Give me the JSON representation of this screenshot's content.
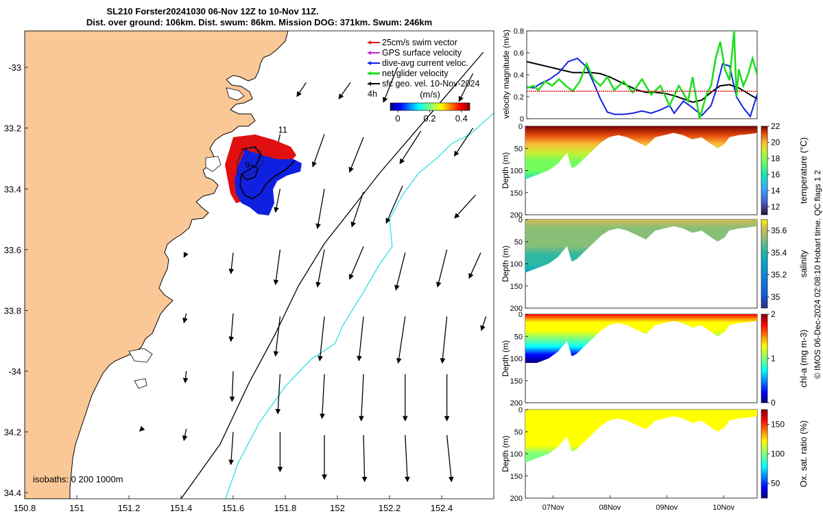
{
  "title_lines": [
    "SL210 Forster20241030 06-Nov 12Z to 10-Nov 11Z.",
    "Dist. over ground: 106km. Dist. swum: 86km. Mission DOG: 371km. Swum: 246km"
  ],
  "colors": {
    "land": "#f9c896",
    "swim": "#e01010",
    "gps": "#d020d0",
    "dive": "#1020e0",
    "net": "#20dd20",
    "sfc": "#000000",
    "isobath200": "#000000",
    "isobath1000": "#30dfe0"
  },
  "chart_data": [
    {
      "type": "map",
      "name": "glider-track-map",
      "xlim": [
        150.8,
        152.6
      ],
      "ylim": [
        -34.42,
        -32.88
      ],
      "x_ticks": [
        150.8,
        151,
        151.2,
        151.4,
        151.6,
        151.8,
        152,
        152.2,
        152.4
      ],
      "x_tick_labels": [
        "150.8",
        "151",
        "151.2",
        "151.4",
        "151.6",
        "151.8",
        "152",
        "152.2",
        "152.4"
      ],
      "y_ticks": [
        -33,
        -33.2,
        -33.4,
        -33.6,
        -33.8,
        -34,
        -34.2,
        -34.4
      ],
      "y_tick_labels": [
        "-33",
        "33.2",
        "33.4",
        "33.6",
        "33.8",
        "-34",
        "34.2",
        "34.4"
      ],
      "legend": {
        "items": [
          {
            "key": "swim",
            "label": "25cm/s swim vector"
          },
          {
            "key": "gps",
            "label": "GPS surface velocity"
          },
          {
            "key": "dive",
            "label": "dive-avg current veloc."
          },
          {
            "key": "net",
            "label": "net glider velocity"
          },
          {
            "key": "sfc",
            "label": "sfc geo. vel. 10-Nov-2024"
          }
        ],
        "interval_label": "4h",
        "colorbar_title": "(m/s)",
        "colorbar_ticks": [
          "0",
          "0.2",
          "0.4"
        ],
        "colorbar_range": [
          0,
          0.5
        ]
      },
      "track_labels": [
        {
          "text": "11",
          "lon": 151.79,
          "lat": -33.215
        },
        {
          "text": "9",
          "lon": 151.655,
          "lat": -33.33
        }
      ],
      "isobaths_label": "isobaths: 0   200  1000m",
      "isobath_200": [
        [
          151.4,
          -34.42
        ],
        [
          151.55,
          -34.24
        ],
        [
          151.66,
          -34.04
        ],
        [
          151.76,
          -33.88
        ],
        [
          151.85,
          -33.72
        ],
        [
          151.95,
          -33.58
        ],
        [
          152.06,
          -33.46
        ],
        [
          152.16,
          -33.35
        ],
        [
          152.27,
          -33.24
        ],
        [
          152.4,
          -33.11
        ],
        [
          152.56,
          -32.95
        ]
      ],
      "isobath_1000": [
        [
          151.57,
          -34.42
        ],
        [
          151.62,
          -34.3
        ],
        [
          151.7,
          -34.17
        ],
        [
          151.8,
          -34.05
        ],
        [
          151.9,
          -33.96
        ],
        [
          151.99,
          -33.91
        ],
        [
          152.02,
          -33.85
        ],
        [
          152.1,
          -33.74
        ],
        [
          152.16,
          -33.65
        ],
        [
          152.21,
          -33.59
        ],
        [
          152.2,
          -33.5
        ],
        [
          152.25,
          -33.42
        ],
        [
          152.31,
          -33.35
        ],
        [
          152.38,
          -33.3
        ],
        [
          152.44,
          -33.25
        ],
        [
          152.51,
          -33.22
        ],
        [
          152.6,
          -33.15
        ]
      ],
      "sfc_vectors": [
        {
          "lon": 152.23,
          "lat": -33.0,
          "u": -0.12,
          "v": -0.3
        },
        {
          "lon": 151.88,
          "lat": -33.05,
          "u": -0.08,
          "v": -0.12
        },
        {
          "lon": 152.05,
          "lat": -33.05,
          "u": -0.1,
          "v": -0.14
        },
        {
          "lon": 152.52,
          "lat": -33.02,
          "u": -0.12,
          "v": -0.24
        },
        {
          "lon": 151.78,
          "lat": -33.22,
          "u": -0.06,
          "v": -0.28
        },
        {
          "lon": 151.95,
          "lat": -33.22,
          "u": -0.1,
          "v": -0.28
        },
        {
          "lon": 152.1,
          "lat": -33.23,
          "u": -0.12,
          "v": -0.3
        },
        {
          "lon": 152.32,
          "lat": -33.21,
          "u": -0.18,
          "v": -0.28
        },
        {
          "lon": 152.52,
          "lat": -33.2,
          "u": -0.16,
          "v": -0.24
        },
        {
          "lon": 151.78,
          "lat": -33.4,
          "u": -0.04,
          "v": -0.2
        },
        {
          "lon": 151.95,
          "lat": -33.4,
          "u": -0.06,
          "v": -0.34
        },
        {
          "lon": 152.1,
          "lat": -33.41,
          "u": -0.1,
          "v": -0.3
        },
        {
          "lon": 152.25,
          "lat": -33.39,
          "u": -0.14,
          "v": -0.32
        },
        {
          "lon": 152.53,
          "lat": -33.42,
          "u": -0.18,
          "v": -0.2
        },
        {
          "lon": 151.42,
          "lat": -33.61,
          "u": -0.02,
          "v": -0.04
        },
        {
          "lon": 151.6,
          "lat": -33.61,
          "u": -0.02,
          "v": -0.18
        },
        {
          "lon": 151.78,
          "lat": -33.6,
          "u": -0.04,
          "v": -0.3
        },
        {
          "lon": 151.95,
          "lat": -33.6,
          "u": -0.06,
          "v": -0.32
        },
        {
          "lon": 152.1,
          "lat": -33.59,
          "u": -0.12,
          "v": -0.28
        },
        {
          "lon": 152.26,
          "lat": -33.61,
          "u": -0.08,
          "v": -0.32
        },
        {
          "lon": 152.42,
          "lat": -33.6,
          "u": -0.08,
          "v": -0.32
        },
        {
          "lon": 152.55,
          "lat": -33.61,
          "u": -0.1,
          "v": -0.22
        },
        {
          "lon": 151.42,
          "lat": -33.81,
          "u": -0.02,
          "v": -0.08
        },
        {
          "lon": 151.6,
          "lat": -33.81,
          "u": -0.02,
          "v": -0.24
        },
        {
          "lon": 151.78,
          "lat": -33.82,
          "u": -0.04,
          "v": -0.34
        },
        {
          "lon": 151.95,
          "lat": -33.82,
          "u": -0.04,
          "v": -0.38
        },
        {
          "lon": 152.1,
          "lat": -33.82,
          "u": -0.04,
          "v": -0.38
        },
        {
          "lon": 152.26,
          "lat": -33.82,
          "u": -0.06,
          "v": -0.4
        },
        {
          "lon": 152.42,
          "lat": -33.82,
          "u": -0.04,
          "v": -0.4
        },
        {
          "lon": 152.57,
          "lat": -33.82,
          "u": -0.04,
          "v": -0.12
        },
        {
          "lon": 151.42,
          "lat": -34.0,
          "u": -0.01,
          "v": -0.1
        },
        {
          "lon": 151.6,
          "lat": -34.0,
          "u": -0.01,
          "v": -0.26
        },
        {
          "lon": 151.78,
          "lat": -34.01,
          "u": -0.02,
          "v": -0.34
        },
        {
          "lon": 151.95,
          "lat": -34.01,
          "u": -0.02,
          "v": -0.38
        },
        {
          "lon": 152.1,
          "lat": -34.01,
          "u": -0.02,
          "v": -0.4
        },
        {
          "lon": 152.26,
          "lat": -34.01,
          "u": 0.0,
          "v": -0.4
        },
        {
          "lon": 152.42,
          "lat": -34.01,
          "u": 0.0,
          "v": -0.4
        },
        {
          "lon": 151.25,
          "lat": -34.19,
          "u": -0.02,
          "v": -0.02
        },
        {
          "lon": 151.42,
          "lat": -34.19,
          "u": -0.02,
          "v": -0.1
        },
        {
          "lon": 151.6,
          "lat": -34.2,
          "u": -0.02,
          "v": -0.28
        },
        {
          "lon": 151.78,
          "lat": -34.2,
          "u": 0.0,
          "v": -0.34
        },
        {
          "lon": 151.95,
          "lat": -34.21,
          "u": 0.0,
          "v": -0.38
        },
        {
          "lon": 152.1,
          "lat": -34.21,
          "u": 0.01,
          "v": -0.4
        },
        {
          "lon": 152.26,
          "lat": -34.21,
          "u": 0.02,
          "v": -0.4
        },
        {
          "lon": 152.42,
          "lat": -34.21,
          "u": 0.04,
          "v": -0.4
        }
      ]
    },
    {
      "type": "line",
      "name": "velocity-magnitude-chart",
      "ylabel": "velocity magnitude (m/s)",
      "ylim": [
        0,
        0.8
      ],
      "y_ticks": [
        "0",
        "0.2",
        "0.4",
        "0.6",
        "0.8"
      ],
      "xlim": [
        0,
        1
      ],
      "series": [
        {
          "name": "sfc geo. vel.",
          "key": "sfc",
          "x": [
            0,
            0.04,
            0.08,
            0.12,
            0.16,
            0.2,
            0.24,
            0.28,
            0.32,
            0.36,
            0.4,
            0.44,
            0.48,
            0.52,
            0.56,
            0.6,
            0.64,
            0.68,
            0.72,
            0.76,
            0.8,
            0.84,
            0.88,
            0.92,
            0.96,
            1.0
          ],
          "y": [
            0.52,
            0.5,
            0.48,
            0.46,
            0.44,
            0.42,
            0.42,
            0.42,
            0.41,
            0.38,
            0.34,
            0.3,
            0.26,
            0.24,
            0.24,
            0.23,
            0.21,
            0.18,
            0.15,
            0.17,
            0.24,
            0.3,
            0.31,
            0.28,
            0.23,
            0.18
          ]
        },
        {
          "name": "dive-avg current veloc.",
          "key": "dive",
          "x": [
            0,
            0.03,
            0.06,
            0.1,
            0.14,
            0.18,
            0.22,
            0.26,
            0.3,
            0.32,
            0.35,
            0.38,
            0.42,
            0.46,
            0.5,
            0.54,
            0.58,
            0.62,
            0.64,
            0.68,
            0.72,
            0.76,
            0.8,
            0.82,
            0.85,
            0.88,
            0.91,
            0.94,
            0.97,
            1.0
          ],
          "y": [
            0.29,
            0.28,
            0.32,
            0.36,
            0.42,
            0.52,
            0.55,
            0.47,
            0.28,
            0.18,
            0.06,
            0.04,
            0.04,
            0.05,
            0.07,
            0.05,
            0.08,
            0.12,
            0.05,
            0.16,
            0.1,
            0.03,
            0.12,
            0.25,
            0.5,
            0.48,
            0.2,
            0.1,
            0.02,
            0.22
          ]
        },
        {
          "name": "net glider velocity",
          "key": "net",
          "x": [
            0,
            0.03,
            0.05,
            0.08,
            0.11,
            0.14,
            0.17,
            0.2,
            0.23,
            0.26,
            0.29,
            0.32,
            0.35,
            0.38,
            0.42,
            0.46,
            0.5,
            0.54,
            0.58,
            0.62,
            0.66,
            0.7,
            0.72,
            0.75,
            0.78,
            0.8,
            0.82,
            0.84,
            0.86,
            0.88,
            0.9,
            0.91,
            0.92,
            0.94,
            0.96,
            0.98,
            1.0
          ],
          "y": [
            0.28,
            0.3,
            0.26,
            0.34,
            0.3,
            0.36,
            0.3,
            0.25,
            0.34,
            0.5,
            0.36,
            0.3,
            0.38,
            0.26,
            0.34,
            0.24,
            0.36,
            0.22,
            0.3,
            0.12,
            0.3,
            0.16,
            0.38,
            0.0,
            0.22,
            0.3,
            0.55,
            0.7,
            0.45,
            0.35,
            0.8,
            0.2,
            0.45,
            0.3,
            0.4,
            0.55,
            0.4
          ]
        },
        {
          "name": "25cm/s swim vector",
          "key": "swim",
          "x": [
            0,
            0.5,
            1.0
          ],
          "y": [
            0.25,
            0.25,
            0.25
          ]
        }
      ]
    },
    {
      "type": "heatmap",
      "name": "temperature-section",
      "ylabel": "Depth (m)",
      "y_ticks": [
        "0",
        "50",
        "100",
        "150",
        "200"
      ],
      "colorbar_label": "temperature (°C)",
      "colorbar_ticks": [
        "12",
        "14",
        "16",
        "18",
        "20",
        "22"
      ],
      "colorbar_range": [
        11,
        22
      ],
      "colormap": "parula",
      "field": {
        "surface_value": 21.5,
        "deep_value": 15.0,
        "gradient_depth": 120
      }
    },
    {
      "type": "heatmap",
      "name": "salinity-section",
      "ylabel": "Depth (m)",
      "y_ticks": [
        "0",
        "50",
        "100",
        "150",
        "200"
      ],
      "colorbar_label": "salinity",
      "colorbar_ticks": [
        "35",
        "35.2",
        "35.4",
        "35.6"
      ],
      "colorbar_range": [
        34.9,
        35.7
      ],
      "colormap": "parula",
      "field": {
        "surface_value": 35.58,
        "deep_value": 35.25,
        "gradient_depth": 120
      }
    },
    {
      "type": "heatmap",
      "name": "chlorophyll-section",
      "ylabel": "Depth (m)",
      "y_ticks": [
        "0",
        "50",
        "100",
        "150",
        "200"
      ],
      "colorbar_label": "chl-a (mg m-3)",
      "colorbar_ticks": [
        "0",
        "1",
        "2"
      ],
      "colorbar_range": [
        0,
        2
      ],
      "colormap": "jet",
      "field": {
        "surface_value": 1.7,
        "deep_value": 0.1,
        "gradient_depth": 110
      }
    },
    {
      "type": "heatmap",
      "name": "oxygen-saturation-section",
      "ylabel": "Depth (m)",
      "y_ticks": [
        "0",
        "50",
        "100",
        "150",
        "200"
      ],
      "colorbar_label": "Ox. sat. ratio (%)",
      "colorbar_ticks": [
        "50",
        "100",
        "150"
      ],
      "colorbar_range": [
        25,
        175
      ],
      "colormap": "jet",
      "field": {
        "surface_value": 132,
        "deep_value": 105,
        "gradient_depth": 120
      }
    }
  ],
  "section_time_axis": {
    "labels": [
      "07Nov",
      "08Nov",
      "09Nov",
      "10Nov"
    ],
    "positions": [
      0.12,
      0.365,
      0.61,
      0.855
    ]
  },
  "section_profile": {
    "x": [
      0,
      0.05,
      0.1,
      0.14,
      0.18,
      0.2,
      0.22,
      0.25,
      0.28,
      0.3,
      0.33,
      0.36,
      0.4,
      0.44,
      0.48,
      0.52,
      0.56,
      0.6,
      0.64,
      0.68,
      0.72,
      0.76,
      0.8,
      0.83,
      0.86,
      0.88,
      0.92,
      0.96,
      1.0
    ],
    "depth": [
      120,
      110,
      100,
      85,
      60,
      95,
      90,
      75,
      60,
      50,
      35,
      25,
      20,
      25,
      35,
      45,
      25,
      20,
      15,
      20,
      30,
      25,
      40,
      50,
      40,
      25,
      20,
      18,
      15
    ]
  },
  "side_credit": "© IMOS 06-Dec-2024 02:08:10 Hobart time. QC flags 1  2"
}
